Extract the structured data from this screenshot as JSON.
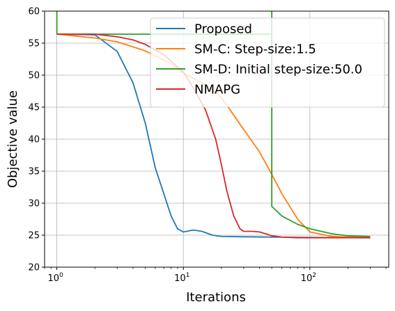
{
  "chart_data": {
    "type": "line",
    "xscale": "log",
    "xlim": [
      0.8,
      420
    ],
    "ylim": [
      20,
      60
    ],
    "xlabel": "Iterations",
    "ylabel": "Objective value",
    "xticks": [
      {
        "value": 1,
        "base": "10",
        "exp": "0"
      },
      {
        "value": 10,
        "base": "10",
        "exp": "1"
      },
      {
        "value": 100,
        "base": "10",
        "exp": "2"
      }
    ],
    "yticks": [
      20,
      25,
      30,
      35,
      40,
      45,
      50,
      55,
      60
    ],
    "grid": true,
    "legend_position": "upper-right",
    "series": [
      {
        "name": "Proposed",
        "color": "#1f77b4",
        "x": [
          1,
          2,
          3,
          4,
          5,
          6,
          7,
          8,
          9,
          10,
          12,
          14,
          17,
          20,
          30,
          50,
          100,
          300
        ],
        "y": [
          56.4,
          56.3,
          53.7,
          48.8,
          42.5,
          35.5,
          31.5,
          28.0,
          26.0,
          25.5,
          25.8,
          25.6,
          25.0,
          24.8,
          24.75,
          24.7,
          24.65,
          24.6
        ]
      },
      {
        "name": "SM-C: Step-size:1.5",
        "color": "#ff7f0e",
        "x": [
          1,
          2,
          3,
          5,
          8,
          10,
          15,
          20,
          30,
          40,
          50,
          60,
          80,
          100,
          150,
          200,
          300
        ],
        "y": [
          56.4,
          55.8,
          55.2,
          53.8,
          51.8,
          50.3,
          48.5,
          46.5,
          41.5,
          38.0,
          34.5,
          31.5,
          27.5,
          25.5,
          24.8,
          24.7,
          24.6
        ]
      },
      {
        "name": "SM-D: Initial step-size:50.0",
        "color": "#2ca02c",
        "x": [
          1,
          1,
          1,
          50,
          50,
          50,
          60,
          80,
          100,
          150,
          200,
          300
        ],
        "y": [
          62,
          57,
          56.4,
          56.4,
          62,
          29.5,
          28.0,
          26.7,
          26.0,
          25.2,
          24.9,
          24.8
        ]
      },
      {
        "name": "NMAPG",
        "color": "#d62728",
        "x": [
          1,
          2,
          3,
          4,
          5,
          7,
          10,
          12,
          15,
          18,
          20,
          22,
          25,
          28,
          30,
          35,
          40,
          45,
          50,
          60,
          80,
          100,
          200,
          300
        ],
        "y": [
          56.4,
          56.4,
          56.0,
          55.5,
          54.8,
          53.2,
          50.5,
          48.0,
          44.5,
          40.0,
          36.0,
          32.0,
          28.0,
          26.0,
          25.6,
          25.6,
          25.5,
          25.2,
          24.9,
          24.7,
          24.6,
          24.6,
          24.6,
          24.6
        ]
      }
    ]
  }
}
